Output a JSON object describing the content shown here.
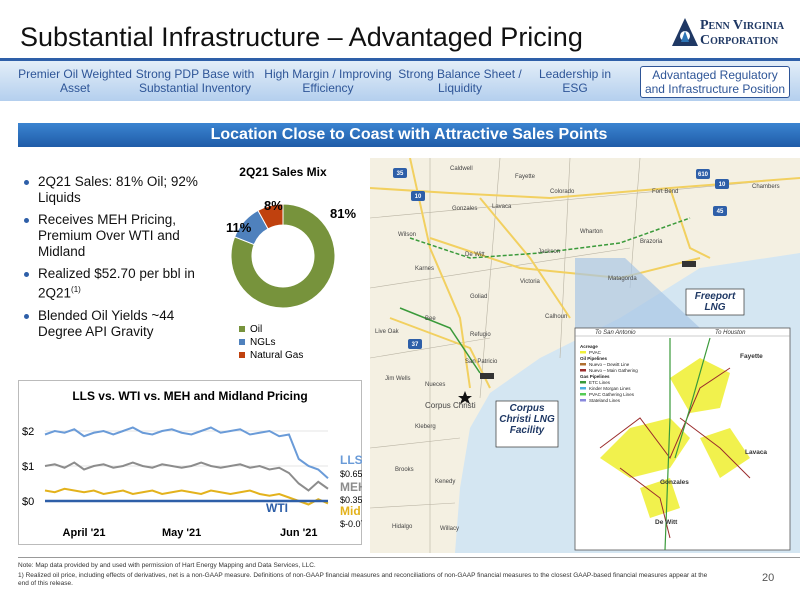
{
  "header": {
    "title": "Substantial Infrastructure – Advantaged Pricing",
    "logo": "Penn Virginia Corporation"
  },
  "tabs": [
    {
      "label": "Premier Oil Weighted Asset",
      "active": false
    },
    {
      "label": "Strong PDP Base with Substantial Inventory",
      "active": false
    },
    {
      "label": "High Margin / Improving Efficiency",
      "active": false
    },
    {
      "label": "Strong Balance Sheet / Liquidity",
      "active": false
    },
    {
      "label": "Leadership in ESG",
      "active": false
    },
    {
      "label": "Advantaged Regulatory and Infrastructure Position",
      "active": true
    }
  ],
  "banner": "Location Close to Coast with Attractive Sales Points",
  "bullets": [
    {
      "text": "2Q21 Sales: 81% Oil; 92% Liquids"
    },
    {
      "text": "Receives MEH Pricing, Premium Over WTI and Midland"
    },
    {
      "text": "Realized $52.70 per bbl in 2Q21",
      "note": "(1)"
    },
    {
      "text": "Blended Oil Yields ~44 Degree API Gravity"
    }
  ],
  "chart_data": [
    {
      "type": "pie",
      "title": "2Q21 Sales Mix",
      "donut": true,
      "categories": [
        "Oil",
        "NGLs",
        "Natural Gas"
      ],
      "values": [
        81,
        11,
        8
      ],
      "value_labels": [
        "81%",
        "11%",
        "8%"
      ],
      "colors": [
        "#77933c",
        "#4f81bd",
        "#c0410e"
      ]
    },
    {
      "type": "line",
      "title": "LLS vs. WTI vs. MEH and Midland Pricing",
      "categories": [
        null,
        null,
        null,
        null,
        "April '21",
        null,
        null,
        null,
        null,
        null,
        null,
        null,
        null,
        null,
        "May '21",
        null,
        null,
        null,
        null,
        null,
        null,
        null,
        null,
        null,
        null,
        null,
        "Jun '21",
        null,
        null,
        null
      ],
      "ylim": [
        -0.3,
        2.4
      ],
      "yticks": [
        {
          "value": 0,
          "label": "$0"
        },
        {
          "value": 1,
          "label": "$1"
        },
        {
          "value": 2,
          "label": "$2"
        }
      ],
      "grid": true,
      "series": [
        {
          "name": "LLS",
          "color": "#6a9bd8",
          "values": [
            1.9,
            2.0,
            1.95,
            2.05,
            1.85,
            1.95,
            2.0,
            1.9,
            2.0,
            2.1,
            1.95,
            1.9,
            2.0,
            2.05,
            1.95,
            1.9,
            2.0,
            2.1,
            1.95,
            2.0,
            2.05,
            1.9,
            1.95,
            2.0,
            1.85,
            1.9,
            1.2,
            1.0,
            0.9,
            0.65
          ],
          "value_labels": [
            null,
            null,
            null,
            null,
            null,
            null,
            null,
            null,
            null,
            null,
            null,
            null,
            null,
            null,
            null,
            null,
            null,
            null,
            null,
            null,
            null,
            null,
            null,
            null,
            null,
            null,
            null,
            null,
            null,
            "$0.65"
          ]
        },
        {
          "name": "MEH",
          "color": "#8c8c8c",
          "values": [
            1.0,
            1.05,
            0.95,
            1.1,
            0.9,
            1.0,
            1.05,
            0.95,
            1.0,
            1.1,
            1.0,
            0.95,
            1.05,
            1.0,
            0.95,
            1.0,
            1.1,
            1.0,
            0.95,
            1.0,
            1.05,
            0.95,
            1.0,
            0.9,
            0.95,
            0.8,
            0.5,
            0.3,
            0.55,
            0.35
          ],
          "value_labels": [
            null,
            null,
            null,
            null,
            null,
            null,
            null,
            null,
            null,
            null,
            null,
            null,
            null,
            null,
            null,
            null,
            null,
            null,
            null,
            null,
            null,
            null,
            null,
            null,
            null,
            null,
            null,
            null,
            null,
            "$0.35"
          ]
        },
        {
          "name": "Mid",
          "color": "#e3b21c",
          "values": [
            0.3,
            0.25,
            0.35,
            0.3,
            0.25,
            0.3,
            0.2,
            0.25,
            0.3,
            0.2,
            0.25,
            0.3,
            0.2,
            0.25,
            0.3,
            0.25,
            0.2,
            0.3,
            0.25,
            0.2,
            0.25,
            0.3,
            0.2,
            0.15,
            0.2,
            0.1,
            0.0,
            -0.1,
            0.05,
            -0.07
          ],
          "value_labels": [
            null,
            null,
            null,
            null,
            null,
            null,
            null,
            null,
            null,
            null,
            null,
            null,
            null,
            null,
            null,
            null,
            null,
            null,
            null,
            null,
            null,
            null,
            null,
            null,
            null,
            null,
            null,
            null,
            null,
            "$-0.07"
          ]
        },
        {
          "name": "WTI",
          "color": "#2e5fa8",
          "values": [
            0,
            0,
            0,
            0,
            0,
            0,
            0,
            0,
            0,
            0,
            0,
            0,
            0,
            0,
            0,
            0,
            0,
            0,
            0,
            0,
            0,
            0,
            0,
            0,
            0,
            0,
            0,
            0,
            0,
            0
          ]
        }
      ]
    }
  ],
  "map": {
    "counties": [
      "Caldwell",
      "Fayette",
      "Colorado",
      "Fort Bend",
      "Chambers",
      "Gonzales",
      "Lavaca",
      "Wharton",
      "Brazoria",
      "Wilson",
      "De Witt",
      "Jackson",
      "Matagorda",
      "Karnes",
      "Goliad",
      "Victoria",
      "Calhoun",
      "Bee",
      "Refugio",
      "Live Oak",
      "San Patricio",
      "Jim Wells",
      "Nueces",
      "Corpus Christi",
      "Kleberg",
      "Brooks",
      "Kenedy",
      "Hidalgo",
      "Willacy"
    ],
    "highways": [
      "35",
      "10",
      "610",
      "10",
      "45",
      "37"
    ],
    "facilities": [
      "Freeport LNG Facility",
      "Corpus Christi LNG Facility"
    ],
    "inset_labels": [
      "To San Antonio",
      "To Houston",
      "Fayette",
      "Lavaca",
      "Gonzales",
      "De Witt"
    ],
    "inset_legend": [
      "Acreage",
      "PVAC",
      "Oil Pipelines",
      "Nuevo – Dewitt Line",
      "Nuevo – Main Gathering",
      "Gas Pipelines",
      "ETC Lines",
      "Kinder Morgan Lines",
      "PVAC Gathering Lines",
      "Stateland Lines"
    ]
  },
  "footnotes": [
    "Note: Map data provided by and used with permission of Hart Energy Mapping and Data Services, LLC.",
    "1) Realized oil price, including effects of derivatives, net is a non-GAAP measure. Definitions of non-GAAP financial measures and reconciliations of non-GAAP financial measures to the closest GAAP-based financial measures appear at the end of this release."
  ],
  "page_number": "20"
}
